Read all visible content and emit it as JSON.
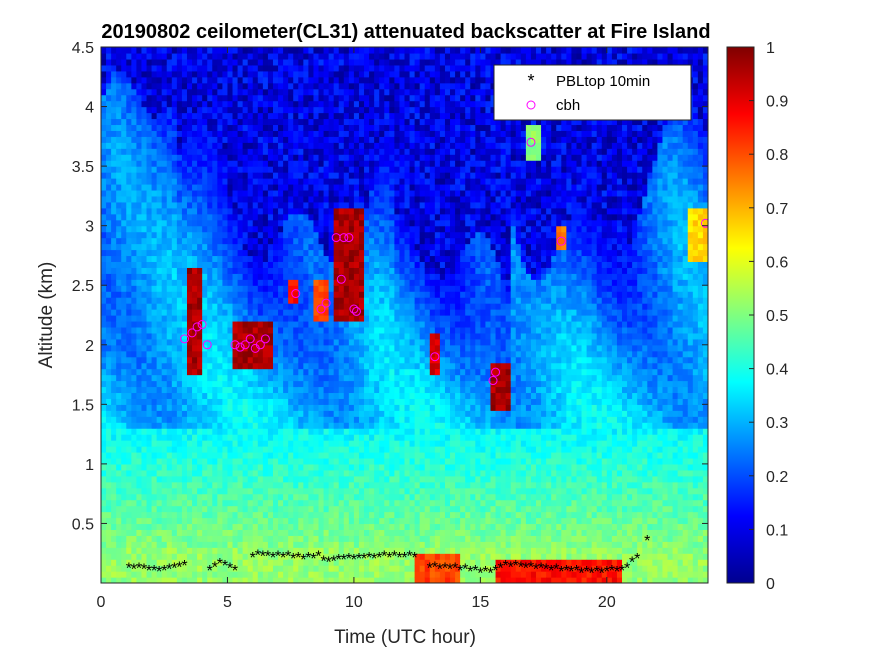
{
  "chart_data": {
    "type": "heatmap",
    "title": "20190802 ceilometer(CL31) attenuated backscatter at Fire Island",
    "xlabel": "Time (UTC hour)",
    "ylabel": "Altitude (km)",
    "xlim": [
      0,
      24
    ],
    "ylim": [
      0,
      4.5
    ],
    "xticks": [
      0,
      5,
      10,
      15,
      20
    ],
    "xtick_labels": [
      "0",
      "5",
      "10",
      "15",
      "20"
    ],
    "yticks": [
      0.5,
      1,
      1.5,
      2,
      2.5,
      3,
      3.5,
      4,
      4.5
    ],
    "ytick_labels": [
      "0.5",
      "1",
      "1.5",
      "2",
      "2.5",
      "3",
      "3.5",
      "4",
      "4.5"
    ],
    "colorbar": {
      "range": [
        0,
        1
      ],
      "colormap": "jet",
      "ticks": [
        0,
        0.1,
        0.2,
        0.3,
        0.4,
        0.5,
        0.6,
        0.7,
        0.8,
        0.9,
        1
      ],
      "tick_labels": [
        "0",
        "0.1",
        "0.2",
        "0.3",
        "0.4",
        "0.5",
        "0.6",
        "0.7",
        "0.8",
        "0.9",
        "1"
      ]
    },
    "legend": {
      "placement": "top-right",
      "entries": [
        {
          "label": "PBLtop 10min",
          "marker": "asterisk",
          "color": "#000000"
        },
        {
          "label": "cbh",
          "marker": "circle",
          "color": "#ff00ff"
        }
      ]
    },
    "cloud_features": [
      {
        "t0": 3.5,
        "t1": 4.0,
        "z0": 1.8,
        "z1": 2.6,
        "value": 1.0
      },
      {
        "t0": 5.3,
        "t1": 6.7,
        "z0": 1.85,
        "z1": 2.2,
        "value": 1.0
      },
      {
        "t0": 7.6,
        "t1": 7.8,
        "z0": 2.35,
        "z1": 2.5,
        "value": 0.9
      },
      {
        "t0": 8.6,
        "t1": 9.0,
        "z0": 2.2,
        "z1": 2.5,
        "value": 0.85
      },
      {
        "t0": 9.2,
        "t1": 10.2,
        "z0": 2.2,
        "z1": 3.1,
        "value": 1.0
      },
      {
        "t0": 13.1,
        "t1": 13.3,
        "z0": 1.8,
        "z1": 2.1,
        "value": 0.95
      },
      {
        "t0": 15.5,
        "t1": 16.0,
        "z0": 1.5,
        "z1": 1.85,
        "value": 1.0
      },
      {
        "t0": 18.0,
        "t1": 18.3,
        "z0": 2.8,
        "z1": 2.95,
        "value": 0.8
      },
      {
        "t0": 23.2,
        "t1": 24.0,
        "z0": 2.7,
        "z1": 3.1,
        "value": 0.7
      },
      {
        "t0": 16.8,
        "t1": 17.2,
        "z0": 3.55,
        "z1": 3.8,
        "value": 0.55
      },
      {
        "t0": 12.4,
        "t1": 14.0,
        "z0": 0.0,
        "z1": 0.22,
        "value": 0.85
      },
      {
        "t0": 15.7,
        "t1": 20.5,
        "z0": 0.0,
        "z1": 0.18,
        "value": 0.9
      }
    ],
    "series": [
      {
        "name": "PBLtop 10min",
        "x": [
          1.1,
          1.3,
          1.5,
          1.7,
          1.9,
          2.1,
          2.3,
          2.5,
          2.7,
          2.9,
          3.1,
          3.3,
          4.3,
          4.5,
          4.7,
          4.9,
          5.1,
          5.3,
          6.0,
          6.2,
          6.4,
          6.6,
          6.8,
          7.0,
          7.2,
          7.4,
          7.6,
          7.8,
          8.0,
          8.2,
          8.4,
          8.6,
          8.8,
          9.0,
          9.2,
          9.4,
          9.6,
          9.8,
          10.0,
          10.2,
          10.4,
          10.6,
          10.8,
          11.0,
          11.2,
          11.4,
          11.6,
          11.8,
          12.0,
          12.2,
          12.4,
          13.0,
          13.2,
          13.4,
          13.6,
          13.8,
          14.0,
          14.2,
          14.4,
          14.6,
          14.8,
          15.0,
          15.2,
          15.4,
          15.6,
          15.8,
          16.0,
          16.2,
          16.4,
          16.6,
          16.8,
          17.0,
          17.2,
          17.4,
          17.6,
          17.8,
          18.0,
          18.2,
          18.4,
          18.6,
          18.8,
          19.0,
          19.2,
          19.4,
          19.6,
          19.8,
          20.0,
          20.2,
          20.4,
          20.6,
          20.8,
          21.0,
          21.2,
          21.6
        ],
        "y": [
          0.13,
          0.12,
          0.13,
          0.12,
          0.11,
          0.11,
          0.1,
          0.11,
          0.12,
          0.13,
          0.14,
          0.15,
          0.11,
          0.14,
          0.17,
          0.15,
          0.13,
          0.11,
          0.22,
          0.24,
          0.23,
          0.23,
          0.22,
          0.23,
          0.22,
          0.23,
          0.21,
          0.22,
          0.2,
          0.22,
          0.21,
          0.23,
          0.19,
          0.18,
          0.19,
          0.2,
          0.2,
          0.21,
          0.2,
          0.21,
          0.21,
          0.22,
          0.21,
          0.22,
          0.23,
          0.22,
          0.23,
          0.22,
          0.22,
          0.23,
          0.22,
          0.13,
          0.14,
          0.12,
          0.13,
          0.12,
          0.13,
          0.11,
          0.12,
          0.1,
          0.11,
          0.09,
          0.1,
          0.09,
          0.11,
          0.13,
          0.15,
          0.14,
          0.15,
          0.14,
          0.13,
          0.14,
          0.12,
          0.13,
          0.12,
          0.11,
          0.12,
          0.1,
          0.11,
          0.1,
          0.11,
          0.09,
          0.1,
          0.09,
          0.1,
          0.09,
          0.1,
          0.11,
          0.1,
          0.11,
          0.13,
          0.18,
          0.21,
          0.36
        ]
      },
      {
        "name": "cbh",
        "x": [
          3.3,
          3.6,
          3.8,
          4.0,
          4.2,
          5.3,
          5.5,
          5.7,
          5.9,
          6.1,
          6.3,
          6.5,
          7.7,
          8.7,
          8.9,
          9.3,
          9.5,
          9.6,
          9.8,
          10.0,
          10.1,
          13.2,
          15.5,
          15.6,
          17.0,
          18.2,
          23.9
        ],
        "y": [
          2.05,
          2.1,
          2.15,
          2.17,
          2.0,
          2.0,
          1.98,
          2.0,
          2.05,
          1.97,
          2.0,
          2.05,
          2.43,
          2.3,
          2.35,
          2.9,
          2.55,
          2.9,
          2.9,
          2.3,
          2.28,
          1.9,
          1.7,
          1.77,
          3.7,
          2.87,
          3.02
        ]
      }
    ]
  }
}
